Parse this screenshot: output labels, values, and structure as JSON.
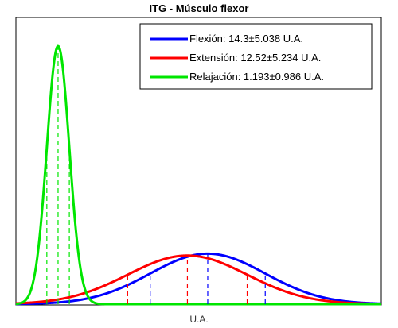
{
  "chart_data": {
    "type": "line",
    "title": "ITG - Músculo flexor",
    "xlabel": "U.A.",
    "ylabel": "",
    "grid": false,
    "legend_position": "top-right",
    "xlim": [
      -2.5,
      29.5
    ],
    "series": [
      {
        "name": "Flexión: 14.3±5.038 U.A.",
        "mean": 14.3,
        "std": 5.038,
        "color": "#0000ff",
        "sigma_lines": [
          9.262,
          14.3,
          19.338
        ]
      },
      {
        "name": "Extensión: 12.52±5.234 U.A.",
        "mean": 12.52,
        "std": 5.234,
        "color": "#ff0000",
        "sigma_lines": [
          7.286,
          12.52,
          17.754
        ]
      },
      {
        "name": "Relajación: 1.193±0.986 U.A.",
        "mean": 1.193,
        "std": 0.986,
        "color": "#00e600",
        "sigma_lines": [
          0.207,
          1.193,
          2.179
        ]
      }
    ]
  }
}
